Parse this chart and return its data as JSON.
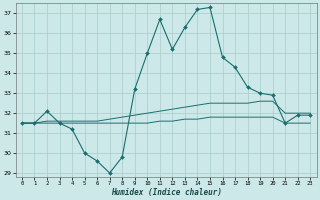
{
  "title": "",
  "xlabel": "Humidex (Indice chaleur)",
  "ylabel": "",
  "xlim": [
    -0.5,
    23.5
  ],
  "ylim": [
    28.8,
    37.5
  ],
  "xticks": [
    0,
    1,
    2,
    3,
    4,
    5,
    6,
    7,
    8,
    9,
    10,
    11,
    12,
    13,
    14,
    15,
    16,
    17,
    18,
    19,
    20,
    21,
    22,
    23
  ],
  "yticks": [
    29,
    30,
    31,
    32,
    33,
    34,
    35,
    36,
    37
  ],
  "bg_color": "#cce8e8",
  "grid_color": "#aacccc",
  "line_color": "#1a6e6e",
  "line1_x": [
    0,
    1,
    2,
    3,
    4,
    5,
    6,
    7,
    8,
    9,
    10,
    11,
    12,
    13,
    14,
    15,
    16,
    17,
    18,
    19,
    20,
    21,
    22,
    23
  ],
  "line1_y": [
    31.5,
    31.5,
    32.1,
    31.5,
    31.2,
    30.0,
    29.6,
    29.0,
    29.8,
    33.2,
    35.0,
    36.7,
    35.2,
    36.3,
    37.2,
    37.3,
    34.8,
    34.3,
    33.3,
    33.0,
    32.9,
    31.5,
    31.9,
    31.9
  ],
  "line2_x": [
    0,
    1,
    2,
    3,
    4,
    5,
    6,
    7,
    8,
    9,
    10,
    11,
    12,
    13,
    14,
    15,
    16,
    17,
    18,
    19,
    20,
    21,
    22,
    23
  ],
  "line2_y": [
    31.5,
    31.5,
    31.6,
    31.6,
    31.6,
    31.6,
    31.6,
    31.7,
    31.8,
    31.9,
    32.0,
    32.1,
    32.2,
    32.3,
    32.4,
    32.5,
    32.5,
    32.5,
    32.5,
    32.6,
    32.6,
    32.0,
    32.0,
    32.0
  ],
  "line3_x": [
    0,
    1,
    2,
    3,
    4,
    5,
    6,
    7,
    8,
    9,
    10,
    11,
    12,
    13,
    14,
    15,
    16,
    17,
    18,
    19,
    20,
    21,
    22,
    23
  ],
  "line3_y": [
    31.5,
    31.5,
    31.5,
    31.5,
    31.5,
    31.5,
    31.5,
    31.5,
    31.5,
    31.5,
    31.5,
    31.6,
    31.6,
    31.7,
    31.7,
    31.8,
    31.8,
    31.8,
    31.8,
    31.8,
    31.8,
    31.5,
    31.5,
    31.5
  ]
}
